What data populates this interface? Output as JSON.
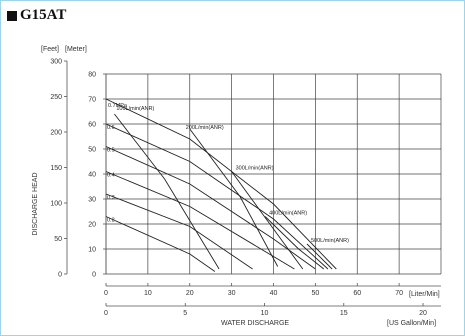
{
  "title": "G15AT",
  "chart_data": {
    "type": "line",
    "xlabel": "WATER DISCHARGE",
    "ylabel": "DISCHARGE HEAD",
    "x_unit_primary": "[Liter/Min]",
    "x_unit_secondary": "[US Gallon/Min]",
    "y_unit_left": "[Feet]",
    "y_unit_right": "[Meter]",
    "xlim": [
      0,
      80
    ],
    "ylim": [
      0,
      80
    ],
    "x_ticks_primary": [
      "0",
      "10",
      "20",
      "30",
      "40",
      "50",
      "60",
      "70"
    ],
    "x_ticks_secondary": [
      "0",
      "5",
      "10",
      "15",
      "20"
    ],
    "y_ticks_feet": [
      "0",
      "50",
      "100",
      "150",
      "200",
      "250",
      "300"
    ],
    "y_ticks_meter": [
      "0",
      "10",
      "20",
      "30",
      "40",
      "50",
      "60",
      "70",
      "80"
    ],
    "grid": true,
    "pressure_curves": [
      {
        "name": "0.7MPa",
        "x": [
          0,
          20,
          40,
          55
        ],
        "y": [
          70,
          54,
          28,
          2
        ]
      },
      {
        "name": "0.6",
        "x": [
          0,
          20,
          40,
          53
        ],
        "y": [
          60,
          45,
          22,
          2
        ]
      },
      {
        "name": "0.5",
        "x": [
          0,
          20,
          40,
          50
        ],
        "y": [
          51,
          36,
          14,
          2
        ]
      },
      {
        "name": "0.4",
        "x": [
          0,
          20,
          40,
          45
        ],
        "y": [
          41,
          27,
          7,
          2
        ]
      },
      {
        "name": "0.3",
        "x": [
          0,
          20,
          35
        ],
        "y": [
          32,
          19,
          2
        ]
      },
      {
        "name": "0.2",
        "x": [
          0,
          20,
          26
        ],
        "y": [
          23,
          8,
          1
        ]
      }
    ],
    "air_curves": [
      {
        "name": "100L/min(ANR)",
        "x": [
          2,
          14,
          27
        ],
        "y": [
          64,
          38,
          2
        ]
      },
      {
        "name": "200L/min(ANR)",
        "x": [
          20,
          32,
          41
        ],
        "y": [
          58,
          31,
          3
        ]
      },
      {
        "name": "300L/min(ANR)",
        "x": [
          30,
          40,
          47
        ],
        "y": [
          41,
          18,
          2
        ]
      },
      {
        "name": "400L/min(ANR)",
        "x": [
          38,
          46,
          52
        ],
        "y": [
          23,
          10,
          2
        ]
      },
      {
        "name": "500L/min(ANR)",
        "x": [
          48,
          54
        ],
        "y": [
          12,
          2
        ]
      }
    ]
  }
}
